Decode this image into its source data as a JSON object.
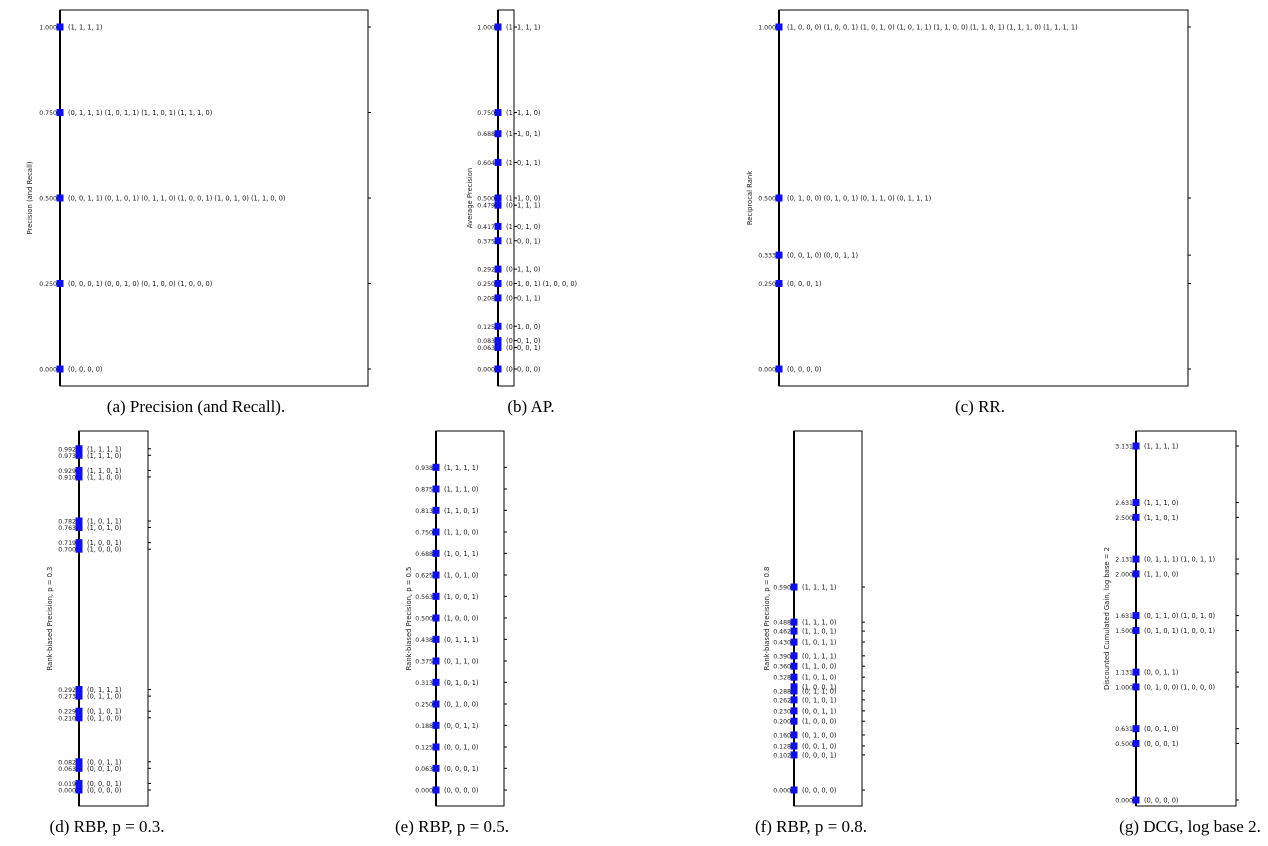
{
  "chart_data": [
    {
      "id": "a",
      "type": "scatter",
      "caption": "(a) Precision (and Recall).",
      "ylabel": "Precision (and Recall)",
      "ylim": [
        0,
        1
      ],
      "yticks": [
        "0.000",
        "0.250",
        "0.500",
        "0.750",
        "1.000"
      ],
      "points": [
        {
          "y": 1.0,
          "label": "(1, 1, 1, 1)"
        },
        {
          "y": 0.75,
          "label": "(0, 1, 1, 1)  (1, 0, 1, 1)  (1, 1, 0, 1)  (1, 1, 1, 0)"
        },
        {
          "y": 0.5,
          "label": "(0, 0, 1, 1)  (0, 1, 0, 1)  (0, 1, 1, 0)  (1, 0, 0, 1)  (1, 0, 1, 0)  (1, 1, 0, 0)"
        },
        {
          "y": 0.25,
          "label": "(0, 0, 0, 1)  (0, 0, 1, 0)  (0, 1, 0, 0)  (1, 0, 0, 0)"
        },
        {
          "y": 0.0,
          "label": "(0, 0, 0, 0)"
        }
      ]
    },
    {
      "id": "b",
      "type": "scatter",
      "caption": "(b) AP.",
      "ylabel": "Average Precision",
      "ylim": [
        0,
        1
      ],
      "yticks": [
        "0.000",
        "0.063",
        "0.083",
        "0.125",
        "0.208",
        "0.250",
        "0.292",
        "0.375",
        "0.417",
        "0.479",
        "0.500",
        "0.604",
        "0.688",
        "0.750",
        "1.000"
      ],
      "points": [
        {
          "y": 1.0,
          "label": "(1, 1, 1, 1)"
        },
        {
          "y": 0.75,
          "label": "(1, 1, 1, 0)"
        },
        {
          "y": 0.688,
          "label": "(1, 1, 0, 1)"
        },
        {
          "y": 0.604,
          "label": "(1, 0, 1, 1)"
        },
        {
          "y": 0.5,
          "label": "(1, 1, 0, 0)"
        },
        {
          "y": 0.479,
          "label": "(0, 1, 1, 1)"
        },
        {
          "y": 0.417,
          "label": "(1, 0, 1, 0)"
        },
        {
          "y": 0.375,
          "label": "(1, 0, 0, 1)"
        },
        {
          "y": 0.292,
          "label": "(0, 1, 1, 0)"
        },
        {
          "y": 0.25,
          "label": "(0, 1, 0, 1)  (1, 0, 0, 0)"
        },
        {
          "y": 0.208,
          "label": "(0, 0, 1, 1)"
        },
        {
          "y": 0.125,
          "label": "(0, 1, 0, 0)"
        },
        {
          "y": 0.083,
          "label": "(0, 0, 1, 0)"
        },
        {
          "y": 0.063,
          "label": "(0, 0, 0, 1)"
        },
        {
          "y": 0.0,
          "label": "(0, 0, 0, 0)"
        }
      ]
    },
    {
      "id": "c",
      "type": "scatter",
      "caption": "(c) RR.",
      "ylabel": "Reciprocal Rank",
      "ylim": [
        0,
        1
      ],
      "yticks": [
        "0.000",
        "0.250",
        "0.333",
        "0.500",
        "1.000"
      ],
      "points": [
        {
          "y": 1.0,
          "label": "(1, 0, 0, 0)  (1, 0, 0, 1)  (1, 0, 1, 0)  (1, 0, 1, 1)  (1, 1, 0, 0)  (1, 1, 0, 1)  (1, 1, 1, 0)  (1, 1, 1, 1)"
        },
        {
          "y": 0.5,
          "label": "(0, 1, 0, 0)  (0, 1, 0, 1)  (0, 1, 1, 0)  (0, 1, 1, 1)"
        },
        {
          "y": 0.333,
          "label": "(0, 0, 1, 0)  (0, 0, 1, 1)"
        },
        {
          "y": 0.25,
          "label": "(0, 0, 0, 1)"
        },
        {
          "y": 0.0,
          "label": "(0, 0, 0, 0)"
        }
      ]
    },
    {
      "id": "d",
      "type": "scatter",
      "caption": "(d) RBP, p = 0.3.",
      "ylabel": "Rank-biased Precision, p = 0.3",
      "ylim": [
        0,
        1
      ],
      "yticks": [
        "0.000",
        "0.019",
        "0.063",
        "0.082",
        "0.210",
        "0.229",
        "0.273",
        "0.292",
        "0.700",
        "0.719",
        "0.763",
        "0.782",
        "0.910",
        "0.929",
        "0.973",
        "0.992"
      ],
      "points": [
        {
          "y": 0.992,
          "label": "(1, 1, 1, 1)"
        },
        {
          "y": 0.973,
          "label": "(1, 1, 1, 0)"
        },
        {
          "y": 0.929,
          "label": "(1, 1, 0, 1)"
        },
        {
          "y": 0.91,
          "label": "(1, 1, 0, 0)"
        },
        {
          "y": 0.782,
          "label": "(1, 0, 1, 1)"
        },
        {
          "y": 0.763,
          "label": "(1, 0, 1, 0)"
        },
        {
          "y": 0.719,
          "label": "(1, 0, 0, 1)"
        },
        {
          "y": 0.7,
          "label": "(1, 0, 0, 0)"
        },
        {
          "y": 0.292,
          "label": "(0, 1, 1, 1)"
        },
        {
          "y": 0.273,
          "label": "(0, 1, 1, 0)"
        },
        {
          "y": 0.229,
          "label": "(0, 1, 0, 1)"
        },
        {
          "y": 0.21,
          "label": "(0, 1, 0, 0)"
        },
        {
          "y": 0.082,
          "label": "(0, 0, 1, 1)"
        },
        {
          "y": 0.063,
          "label": "(0, 0, 1, 0)"
        },
        {
          "y": 0.019,
          "label": "(0, 0, 0, 1)"
        },
        {
          "y": 0.0,
          "label": "(0, 0, 0, 0)"
        }
      ]
    },
    {
      "id": "e",
      "type": "scatter",
      "caption": "(e) RBP, p = 0.5.",
      "ylabel": "Rank-biased Precision, p = 0.5",
      "ylim": [
        0,
        1
      ],
      "yticks": [
        "0.000",
        "0.063",
        "0.125",
        "0.188",
        "0.250",
        "0.313",
        "0.375",
        "0.438",
        "0.500",
        "0.563",
        "0.625",
        "0.688",
        "0.750",
        "0.813",
        "0.875",
        "0.938"
      ],
      "points": [
        {
          "y": 0.938,
          "label": "(1, 1, 1, 1)"
        },
        {
          "y": 0.875,
          "label": "(1, 1, 1, 0)"
        },
        {
          "y": 0.813,
          "label": "(1, 1, 0, 1)"
        },
        {
          "y": 0.75,
          "label": "(1, 1, 0, 0)"
        },
        {
          "y": 0.688,
          "label": "(1, 0, 1, 1)"
        },
        {
          "y": 0.625,
          "label": "(1, 0, 1, 0)"
        },
        {
          "y": 0.563,
          "label": "(1, 0, 0, 1)"
        },
        {
          "y": 0.5,
          "label": "(1, 0, 0, 0)"
        },
        {
          "y": 0.438,
          "label": "(0, 1, 1, 1)"
        },
        {
          "y": 0.375,
          "label": "(0, 1, 1, 0)"
        },
        {
          "y": 0.313,
          "label": "(0, 1, 0, 1)"
        },
        {
          "y": 0.25,
          "label": "(0, 1, 0, 0)"
        },
        {
          "y": 0.188,
          "label": "(0, 0, 1, 1)"
        },
        {
          "y": 0.125,
          "label": "(0, 0, 1, 0)"
        },
        {
          "y": 0.063,
          "label": "(0, 0, 0, 1)"
        },
        {
          "y": 0.0,
          "label": "(0, 0, 0, 0)"
        }
      ]
    },
    {
      "id": "f",
      "type": "scatter",
      "caption": "(f) RBP, p = 0.8.",
      "ylabel": "Rank-biased Precision, p = 0.8",
      "ylim": [
        0,
        1
      ],
      "yticks": [
        "0.000",
        "0.102",
        "0.128",
        "0.160",
        "0.200",
        "0.230",
        "0.262",
        "0.288",
        "0.328",
        "0.360",
        "0.390",
        "0.430",
        "0.462",
        "0.488",
        "0.590"
      ],
      "points": [
        {
          "y": 0.59,
          "label": "(1, 1, 1, 1)"
        },
        {
          "y": 0.488,
          "label": "(1, 1, 1, 0)"
        },
        {
          "y": 0.462,
          "label": "(1, 1, 0, 1)"
        },
        {
          "y": 0.43,
          "label": "(1, 0, 1, 1)"
        },
        {
          "y": 0.39,
          "label": "(0, 1, 1, 1)"
        },
        {
          "y": 0.36,
          "label": "(1, 1, 0, 0)"
        },
        {
          "y": 0.328,
          "label": "(1, 0, 1, 0)"
        },
        {
          "y": 0.3,
          "label": "(1, 0, 0, 1)"
        },
        {
          "y": 0.288,
          "label": "(0, 1, 1, 0)"
        },
        {
          "y": 0.262,
          "label": "(0, 1, 0, 1)"
        },
        {
          "y": 0.23,
          "label": "(0, 0, 1, 1)"
        },
        {
          "y": 0.2,
          "label": "(1, 0, 0, 0)"
        },
        {
          "y": 0.16,
          "label": "(0, 1, 0, 0)"
        },
        {
          "y": 0.128,
          "label": "(0, 0, 1, 0)"
        },
        {
          "y": 0.102,
          "label": "(0, 0, 0, 1)"
        },
        {
          "y": 0.0,
          "label": "(0, 0, 0, 0)"
        }
      ]
    },
    {
      "id": "g",
      "type": "scatter",
      "caption": "(g) DCG, log base 2.",
      "ylabel": "Discounted Cumulated Gain, log base = 2",
      "ylim": [
        0,
        3.131
      ],
      "yticks": [
        "0.000",
        "0.500",
        "0.631",
        "1.000",
        "1.131",
        "1.500",
        "1.631",
        "2.000",
        "2.131",
        "2.500",
        "2.631",
        "3.131"
      ],
      "points": [
        {
          "y": 3.131,
          "label": "(1, 1, 1, 1)"
        },
        {
          "y": 2.631,
          "label": "(1, 1, 1, 0)"
        },
        {
          "y": 2.5,
          "label": "(1, 1, 0, 1)"
        },
        {
          "y": 2.131,
          "label": "(0, 1, 1, 1)  (1, 0, 1, 1)"
        },
        {
          "y": 2.0,
          "label": "(1, 1, 0, 0)"
        },
        {
          "y": 1.631,
          "label": "(0, 1, 1, 0)  (1, 0, 1, 0)"
        },
        {
          "y": 1.5,
          "label": "(0, 1, 0, 1)  (1, 0, 0, 1)"
        },
        {
          "y": 1.131,
          "label": "(0, 0, 1, 1)"
        },
        {
          "y": 1.0,
          "label": "(0, 1, 0, 0)  (1, 0, 0, 0)"
        },
        {
          "y": 0.631,
          "label": "(0, 0, 1, 0)"
        },
        {
          "y": 0.5,
          "label": "(0, 0, 0, 1)"
        },
        {
          "y": 0.0,
          "label": "(0, 0, 0, 0)"
        }
      ]
    }
  ],
  "style": {
    "marker_color": "#1010e8",
    "axis_color": "#000000"
  }
}
